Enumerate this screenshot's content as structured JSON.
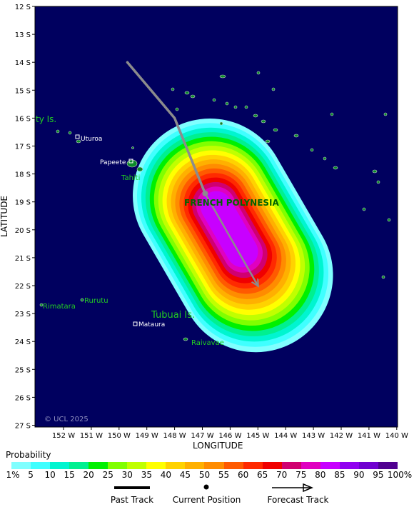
{
  "map": {
    "copyright": "© UCL 2025",
    "region_label": "FRENCH POLYNESIA",
    "x_axis_title": "LONGITUDE",
    "y_axis_title": "LATITUDE",
    "lon_ticks": [
      "152 W",
      "151 W",
      "150 W",
      "149 W",
      "148 W",
      "147 W",
      "146 W",
      "145 W",
      "144 W",
      "143 W",
      "142 W",
      "141 W",
      "140 W"
    ],
    "lat_ticks": [
      "12 S",
      "13 S",
      "14 S",
      "15 S",
      "16 S",
      "17 S",
      "18 S",
      "19 S",
      "20 S",
      "21 S",
      "22 S",
      "23 S",
      "24 S",
      "25 S",
      "26 S",
      "27 S"
    ],
    "places": {
      "uturoa": "Uturoa",
      "papeete": "Papeete",
      "tahiti": "Tahiti",
      "society": "ty Is.",
      "rurutu": "Rurutu",
      "rimatara": "Rimatara",
      "tubuai": "Tubuai Is.",
      "mataura": "Mataura",
      "raivavae": "Raivavae"
    },
    "track": {
      "past": [
        [
          -149.7,
          14.0
        ],
        [
          -148.0,
          16.0
        ],
        [
          -146.9,
          18.7
        ]
      ],
      "current_position": [
        -146.9,
        18.7
      ],
      "forecast": [
        [
          -146.9,
          18.7
        ],
        [
          -145.0,
          22.0
        ]
      ]
    },
    "colors": {
      "ocean": "#00005f",
      "land": "#0a8a2a",
      "track": "#8c8c8c",
      "place_label_green": "#22cc22",
      "place_label_white": "#ffffff",
      "region_label": "#006400"
    }
  },
  "legend": {
    "probability_title": "Probability",
    "scale_labels": [
      "1%",
      "5",
      "10",
      "15",
      "20",
      "25",
      "30",
      "35",
      "40",
      "45",
      "50",
      "55",
      "60",
      "65",
      "70",
      "75",
      "80",
      "85",
      "90",
      "95",
      "100%"
    ],
    "scale_colors": [
      "#80ffff",
      "#40ffff",
      "#00f5d0",
      "#00f090",
      "#00f000",
      "#80ff00",
      "#c0ff00",
      "#ffff00",
      "#ffd200",
      "#ffb000",
      "#ff8c00",
      "#ff5a00",
      "#ff2a00",
      "#f00000",
      "#d00070",
      "#e000c0",
      "#c800ff",
      "#9000f0",
      "#7000d0",
      "#500090"
    ],
    "past_track_label": "Past Track",
    "current_position_label": "Current Position",
    "forecast_track_label": "Forecast Track"
  }
}
